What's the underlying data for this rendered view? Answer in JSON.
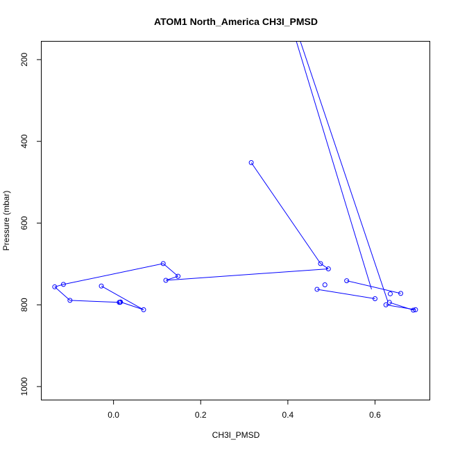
{
  "chart_data": {
    "type": "line",
    "title": "ATOM1 North_America CH3I_PMSD",
    "xlabel": "CH3I_PMSD",
    "ylabel": "Pressure (mbar)",
    "xlim": [
      -0.165,
      0.725
    ],
    "ylim": [
      1032,
      156
    ],
    "y_reversed": true,
    "grid": false,
    "x_ticks": [
      {
        "value": 0.0,
        "label": "0.0"
      },
      {
        "value": 0.2,
        "label": "0.2"
      },
      {
        "value": 0.4,
        "label": "0.4"
      },
      {
        "value": 0.6,
        "label": "0.6"
      }
    ],
    "y_ticks": [
      {
        "value": 200,
        "label": "200"
      },
      {
        "value": 400,
        "label": "400"
      },
      {
        "value": 600,
        "label": "600"
      },
      {
        "value": 800,
        "label": "800"
      },
      {
        "value": 1000,
        "label": "1000"
      }
    ],
    "series": [
      {
        "color": "#0000ff",
        "marker": "open-circle",
        "points": [
          {
            "x": 0.316,
            "y": 452
          },
          {
            "x": 0.475,
            "y": 699
          },
          {
            "x": 0.493,
            "y": 712
          },
          {
            "x": 0.12,
            "y": 740
          },
          {
            "x": 0.148,
            "y": 730
          },
          {
            "x": 0.114,
            "y": 699
          },
          {
            "x": -0.115,
            "y": 750
          },
          {
            "x": -0.135,
            "y": 756
          },
          {
            "x": -0.1,
            "y": 789
          },
          {
            "x": 0.013,
            "y": 794
          },
          {
            "x": 0.015,
            "y": 794
          },
          {
            "x": -0.028,
            "y": 754
          },
          {
            "x": 0.069,
            "y": 812
          },
          {
            "x": 0.016,
            "y": 793
          }
        ],
        "segments": [
          [
            0,
            1
          ],
          [
            1,
            2
          ],
          [
            2,
            3
          ],
          [
            3,
            4
          ],
          [
            4,
            5
          ],
          [
            5,
            6
          ],
          [
            6,
            7
          ],
          [
            7,
            8
          ],
          [
            8,
            9
          ],
          [
            9,
            10
          ],
          [
            11,
            12
          ],
          [
            12,
            13
          ]
        ]
      },
      {
        "color": "#0000ff",
        "marker": "open-circle",
        "points": [
          {
            "x": 0.467,
            "y": 762
          },
          {
            "x": 0.6,
            "y": 785
          },
          {
            "x": 0.485,
            "y": 751
          },
          {
            "x": 0.535,
            "y": 741
          },
          {
            "x": 0.659,
            "y": 772
          },
          {
            "x": 0.635,
            "y": 773
          },
          {
            "x": 0.633,
            "y": 794
          },
          {
            "x": 0.688,
            "y": 813
          },
          {
            "x": 0.693,
            "y": 812
          },
          {
            "x": 0.625,
            "y": 800
          }
        ],
        "segments": [
          [
            0,
            1
          ],
          [
            2,
            2
          ],
          [
            3,
            4
          ],
          [
            6,
            7
          ],
          [
            9,
            8
          ]
        ]
      },
      {
        "color": "#0000ff",
        "marker": "none",
        "points": [
          {
            "x": 0.418,
            "y": 150
          },
          {
            "x": 0.592,
            "y": 762
          }
        ],
        "segments": [
          [
            0,
            1
          ]
        ]
      },
      {
        "color": "#0000ff",
        "marker": "none",
        "points": [
          {
            "x": 0.427,
            "y": 150
          },
          {
            "x": 0.63,
            "y": 794
          }
        ],
        "segments": [
          [
            0,
            1
          ]
        ]
      }
    ]
  }
}
